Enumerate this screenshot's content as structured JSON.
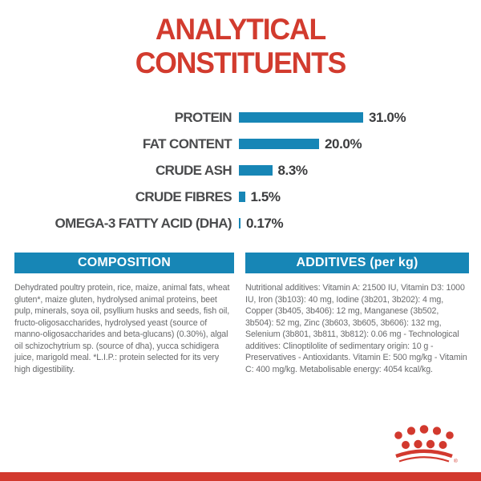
{
  "title": {
    "line1": "ANALYTICAL",
    "line2": "CONSTITUENTS"
  },
  "chart_data": {
    "type": "bar",
    "orientation": "horizontal",
    "unit": "percent",
    "categories": [
      "PROTEIN",
      "FAT CONTENT",
      "CRUDE ASH",
      "CRUDE FIBRES",
      "OMEGA-3 FATTY ACID (DHA)"
    ],
    "values": [
      31.0,
      20.0,
      8.3,
      1.5,
      0.17
    ],
    "rows": [
      {
        "label": "PROTEIN",
        "value": 31.0,
        "value_label": "31.0%"
      },
      {
        "label": "FAT CONTENT",
        "value": 20.0,
        "value_label": "20.0%"
      },
      {
        "label": "CRUDE ASH",
        "value": 8.3,
        "value_label": "8.3%"
      },
      {
        "label": "CRUDE FIBRES",
        "value": 1.5,
        "value_label": "1.5%"
      },
      {
        "label": "OMEGA-3 FATTY ACID (DHA)",
        "value": 0.17,
        "value_label": "0.17%"
      }
    ],
    "bar_color": "#1786b6",
    "xlim": [
      0,
      31
    ],
    "grid": false,
    "legend": false
  },
  "composition": {
    "header": "COMPOSITION",
    "body": "Dehydrated poultry protein, rice, maize, animal fats, wheat gluten*, maize gluten, hydrolysed animal proteins, beet pulp, minerals, soya oil, psyllium husks and seeds, fish oil, fructo-oligosaccharides, hydrolysed yeast (source of manno-oligosaccharides and beta-glucans) (0.30%), algal oil schizochytrium sp. (source of dha), yucca schidigera juice, marigold meal. *L.I.P.: protein selected for its very high digestibility."
  },
  "additives": {
    "header": "ADDITIVES (per kg)",
    "body": "Nutritional additives: Vitamin A: 21500 IU, Vitamin D3: 1000 IU, Iron (3b103): 40 mg, Iodine (3b201, 3b202): 4 mg, Copper (3b405, 3b406): 12 mg, Manganese (3b502, 3b504): 52 mg, Zinc (3b603, 3b605, 3b606): 132 mg, Selenium (3b801, 3b811, 3b812): 0.06 mg - Technological additives: Clinoptilolite of sedimentary origin: 10 g - Preservatives - Antioxidants. Vitamin E: 500 mg/kg - Vitamin C: 400 mg/kg. Metabolisable energy: 4054 kcal/kg."
  },
  "brand": {
    "logo": "royal-canin-crown",
    "registered_mark": "®"
  },
  "colors": {
    "accent_red": "#d2392e",
    "band_blue": "#1786b6",
    "body_text_gray": "#68696b",
    "chart_label_gray": "#4a4b4d",
    "chart_value_gray": "#3b3c3e"
  }
}
